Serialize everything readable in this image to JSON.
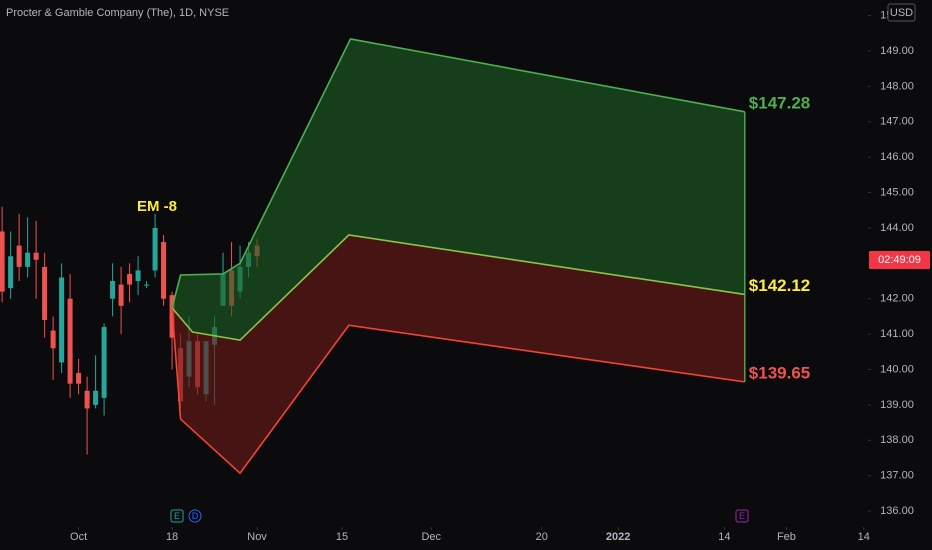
{
  "chart_data": {
    "type": "candlestick",
    "title": "Procter & Gamble Company (The), 1D, NYSE",
    "currency": "USD",
    "countdown": "02:49:09",
    "annotation": "EM -8",
    "events": [
      "E",
      "D",
      "E"
    ],
    "x": [
      0,
      1,
      2,
      3,
      4,
      5,
      6,
      7,
      8,
      9,
      10,
      11,
      12,
      13,
      14,
      15,
      16,
      17,
      18,
      19,
      20,
      21,
      22,
      23,
      24,
      25,
      26,
      27,
      28,
      29,
      30
    ],
    "open": [
      143.9,
      142.3,
      143.5,
      142.9,
      143.3,
      142.9,
      141.1,
      140.2,
      142.0,
      139.9,
      139.4,
      139.0,
      139.2,
      142.0,
      142.4,
      142.7,
      142.5,
      142.4,
      142.8,
      143.6,
      142.1,
      140.6,
      139.8,
      140.8,
      139.3,
      140.7,
      141.8,
      142.8,
      142.2,
      142.9,
      143.5
    ],
    "high": [
      144.6,
      143.9,
      144.4,
      144.3,
      144.2,
      143.3,
      141.5,
      143.0,
      142.7,
      140.3,
      139.8,
      140.4,
      141.3,
      143.0,
      142.9,
      143.0,
      143.2,
      142.5,
      144.4,
      143.8,
      142.2,
      141.0,
      141.5,
      141.0,
      140.8,
      141.5,
      143.3,
      143.6,
      143.5,
      143.6,
      143.7
    ],
    "low": [
      141.9,
      142.0,
      142.5,
      142.6,
      142.0,
      140.9,
      139.7,
      139.9,
      139.2,
      139.3,
      137.6,
      138.9,
      138.7,
      141.5,
      141.0,
      141.9,
      142.1,
      142.3,
      142.6,
      141.8,
      140.0,
      138.9,
      139.5,
      139.3,
      139.1,
      139.0,
      141.8,
      141.5,
      142.0,
      142.6,
      142.9
    ],
    "close": [
      142.2,
      143.2,
      142.9,
      143.3,
      143.1,
      141.4,
      140.6,
      142.6,
      139.6,
      139.6,
      138.9,
      139.4,
      141.2,
      142.5,
      141.8,
      142.4,
      142.8,
      142.4,
      144.0,
      142.0,
      140.9,
      139.1,
      140.8,
      139.5,
      140.8,
      141.2,
      142.7,
      141.8,
      142.9,
      143.3,
      143.2
    ],
    "up_color": "#26a69a",
    "down_color": "#ef5350",
    "bands": [
      {
        "x": [
          20,
          21,
          26,
          28,
          41,
          87.4
        ],
        "values": [
          141.74,
          142.67,
          142.7,
          143.0,
          149.34,
          147.28
        ],
        "end_label": "$147.28",
        "color": "#4caf50",
        "label_color": "#4caf50"
      },
      {
        "x": [
          20,
          22.4,
          28,
          40.8,
          87.4
        ],
        "values": [
          141.74,
          141.06,
          140.83,
          143.8,
          142.12
        ],
        "end_label": "$142.12",
        "color": "#8bc34a",
        "label_color": "#ffeb3b"
      },
      {
        "x": [
          20,
          21,
          28,
          40.8,
          87.4
        ],
        "values": [
          141.74,
          138.6,
          137.07,
          141.25,
          139.65
        ],
        "end_label": "$139.65",
        "color": "#f44336",
        "label_color": "#ef5350"
      }
    ],
    "fills": [
      "#1f5e24",
      "#6a1a16"
    ],
    "xlim": [
      -0.25,
      101.9
    ],
    "xticks": [
      {
        "value": 9,
        "label": "Oct"
      },
      {
        "value": 20,
        "label": "18"
      },
      {
        "value": 30,
        "label": "Nov"
      },
      {
        "value": 40,
        "label": "15"
      },
      {
        "value": 50.5,
        "label": "Dec"
      },
      {
        "value": 63.5,
        "label": "20"
      },
      {
        "value": 72.5,
        "label": "2022"
      },
      {
        "value": 85,
        "label": "14"
      },
      {
        "value": 92.3,
        "label": "Feb"
      },
      {
        "value": 101.4,
        "label": "14"
      }
    ],
    "ylim": [
      135.55,
      150.44
    ],
    "yticks": [
      {
        "value": 136,
        "label": "136.00"
      },
      {
        "value": 137,
        "label": "137.00"
      },
      {
        "value": 138,
        "label": "138.00"
      },
      {
        "value": 139,
        "label": "139.00"
      },
      {
        "value": 140,
        "label": "140.00"
      },
      {
        "value": 141,
        "label": "141.00"
      },
      {
        "value": 142,
        "label": "142.00"
      },
      {
        "value": 143,
        "label": "143.00"
      },
      {
        "value": 144,
        "label": "144.00"
      },
      {
        "value": 145,
        "label": "145.00"
      },
      {
        "value": 146,
        "label": "146.00"
      },
      {
        "value": 147,
        "label": "147.00"
      },
      {
        "value": 148,
        "label": "148.00"
      },
      {
        "value": 149,
        "label": "149.00"
      },
      {
        "value": 150,
        "label": "150.00"
      }
    ]
  }
}
